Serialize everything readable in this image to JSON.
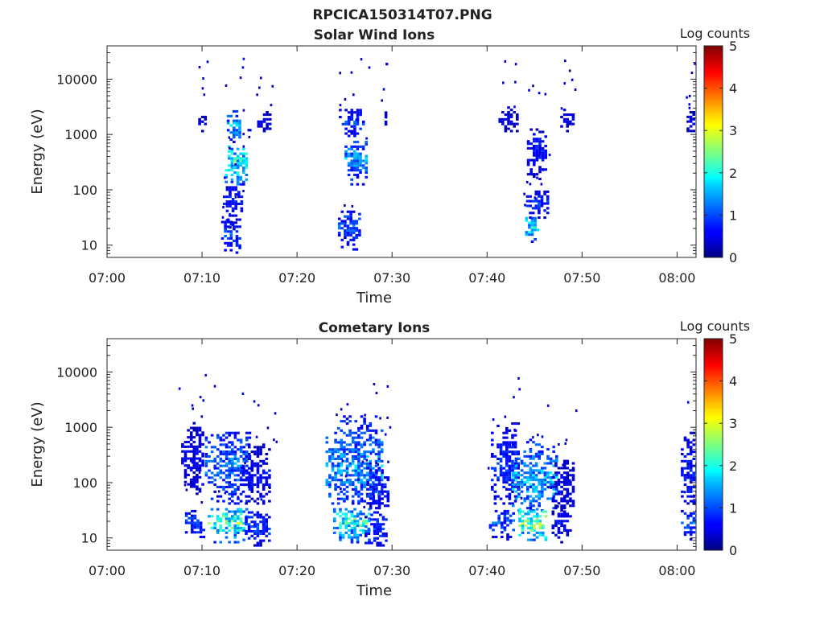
{
  "figure": {
    "title": "RPCICA150314T07.PNG"
  },
  "chart_data": [
    {
      "type": "heatmap",
      "title": "Solar Wind Ions",
      "xlabel": "Time",
      "ylabel": "Energy (eV)",
      "y_scale": "log",
      "xlim": [
        "07:00",
        "08:02"
      ],
      "ylim": [
        6,
        40000
      ],
      "x_tick_labels": [
        "07:00",
        "07:10",
        "07:20",
        "07:30",
        "07:40",
        "07:50",
        "08:00"
      ],
      "x_ticks_min": [
        0,
        10,
        20,
        30,
        40,
        50,
        60
      ],
      "y_tick_labels": [
        "10",
        "100",
        "1000",
        "10000"
      ],
      "y_ticks": [
        10,
        100,
        1000,
        10000
      ],
      "colorbar": {
        "label": "Log counts",
        "min": 0,
        "max": 5,
        "ticks": [
          "0",
          "1",
          "2",
          "3",
          "4",
          "5"
        ],
        "colormap": "jet"
      },
      "grid": false,
      "bursts": [
        {
          "t": 10.0,
          "e": 1600,
          "v": 0.5,
          "w": 0.4,
          "emin": 1100,
          "emax": 2500
        },
        {
          "t": 13.4,
          "e": 1400,
          "v": 1.5,
          "w": 0.8,
          "emin": 700,
          "emax": 2800
        },
        {
          "t": 13.6,
          "e": 300,
          "v": 2.2,
          "w": 1.2,
          "emin": 120,
          "emax": 600
        },
        {
          "t": 13.2,
          "e": 60,
          "v": 0.8,
          "w": 1.0,
          "emin": 20,
          "emax": 110
        },
        {
          "t": 13.0,
          "e": 15,
          "v": 1.0,
          "w": 1.0,
          "emin": 7,
          "emax": 30
        },
        {
          "t": 16.6,
          "e": 1600,
          "v": 0.6,
          "w": 0.8,
          "emin": 1100,
          "emax": 2800
        },
        {
          "t": 25.8,
          "e": 1600,
          "v": 1.0,
          "w": 1.4,
          "emin": 900,
          "emax": 2800
        },
        {
          "t": 26.2,
          "e": 350,
          "v": 1.5,
          "w": 1.2,
          "emin": 120,
          "emax": 700
        },
        {
          "t": 25.5,
          "e": 20,
          "v": 1.1,
          "w": 1.2,
          "emin": 8,
          "emax": 40
        },
        {
          "t": 29.2,
          "e": 1800,
          "v": 0.5,
          "w": 0.3,
          "emin": 1200,
          "emax": 2800
        },
        {
          "t": 42.2,
          "e": 1800,
          "v": 0.5,
          "w": 1.0,
          "emin": 1100,
          "emax": 3000
        },
        {
          "t": 45.2,
          "e": 500,
          "v": 0.8,
          "w": 1.0,
          "emin": 150,
          "emax": 1200
        },
        {
          "t": 45.3,
          "e": 55,
          "v": 0.9,
          "w": 1.2,
          "emin": 30,
          "emax": 90
        },
        {
          "t": 44.8,
          "e": 20,
          "v": 1.9,
          "w": 0.8,
          "emin": 10,
          "emax": 32
        },
        {
          "t": 48.5,
          "e": 1800,
          "v": 0.6,
          "w": 0.8,
          "emin": 1100,
          "emax": 2800
        },
        {
          "t": 61.4,
          "e": 1600,
          "v": 0.5,
          "w": 0.4,
          "emin": 1000,
          "emax": 2800
        }
      ]
    },
    {
      "type": "heatmap",
      "title": "Cometary Ions",
      "xlabel": "Time",
      "ylabel": "Energy (eV)",
      "y_scale": "log",
      "xlim": [
        "07:00",
        "08:02"
      ],
      "ylim": [
        6,
        40000
      ],
      "x_tick_labels": [
        "07:00",
        "07:10",
        "07:20",
        "07:30",
        "07:40",
        "07:50",
        "08:00"
      ],
      "x_ticks_min": [
        0,
        10,
        20,
        30,
        40,
        50,
        60
      ],
      "y_tick_labels": [
        "10",
        "100",
        "1000",
        "10000"
      ],
      "y_ticks": [
        10,
        100,
        1000,
        10000
      ],
      "colorbar": {
        "label": "Log counts",
        "min": 0,
        "max": 5,
        "ticks": [
          "0",
          "1",
          "2",
          "3",
          "4",
          "5"
        ],
        "colormap": "jet"
      },
      "grid": false,
      "bursts": [
        {
          "t": 9.0,
          "e": 250,
          "v": 0.6,
          "w": 1.2,
          "emin": 60,
          "emax": 1200
        },
        {
          "t": 9.2,
          "e": 18,
          "v": 1.0,
          "w": 1.0,
          "emin": 9,
          "emax": 30
        },
        {
          "t": 12.8,
          "e": 200,
          "v": 1.3,
          "w": 2.5,
          "emin": 40,
          "emax": 800
        },
        {
          "t": 12.8,
          "e": 18,
          "v": 2.4,
          "w": 2.2,
          "emin": 8,
          "emax": 32
        },
        {
          "t": 15.8,
          "e": 120,
          "v": 0.7,
          "w": 1.6,
          "emin": 40,
          "emax": 500
        },
        {
          "t": 15.8,
          "e": 15,
          "v": 1.0,
          "w": 1.3,
          "emin": 7,
          "emax": 30
        },
        {
          "t": 26.0,
          "e": 180,
          "v": 1.5,
          "w": 3.0,
          "emin": 40,
          "emax": 1500
        },
        {
          "t": 25.8,
          "e": 18,
          "v": 2.2,
          "w": 2.0,
          "emin": 8,
          "emax": 32
        },
        {
          "t": 28.5,
          "e": 80,
          "v": 0.8,
          "w": 1.2,
          "emin": 30,
          "emax": 200
        },
        {
          "t": 28.3,
          "e": 14,
          "v": 1.0,
          "w": 1.2,
          "emin": 7,
          "emax": 30
        },
        {
          "t": 42.0,
          "e": 180,
          "v": 0.9,
          "w": 1.6,
          "emin": 40,
          "emax": 1200
        },
        {
          "t": 41.5,
          "e": 18,
          "v": 1.1,
          "w": 1.3,
          "emin": 9,
          "emax": 30
        },
        {
          "t": 45.0,
          "e": 100,
          "v": 1.7,
          "w": 2.4,
          "emin": 30,
          "emax": 600
        },
        {
          "t": 44.8,
          "e": 18,
          "v": 2.6,
          "w": 1.5,
          "emin": 8,
          "emax": 32
        },
        {
          "t": 48.0,
          "e": 90,
          "v": 0.6,
          "w": 1.2,
          "emin": 30,
          "emax": 250
        },
        {
          "t": 47.8,
          "e": 18,
          "v": 0.7,
          "w": 1.0,
          "emin": 8,
          "emax": 30
        },
        {
          "t": 61.4,
          "e": 150,
          "v": 0.8,
          "w": 1.0,
          "emin": 40,
          "emax": 800
        },
        {
          "t": 61.4,
          "e": 18,
          "v": 1.2,
          "w": 1.0,
          "emin": 9,
          "emax": 30
        }
      ]
    }
  ]
}
